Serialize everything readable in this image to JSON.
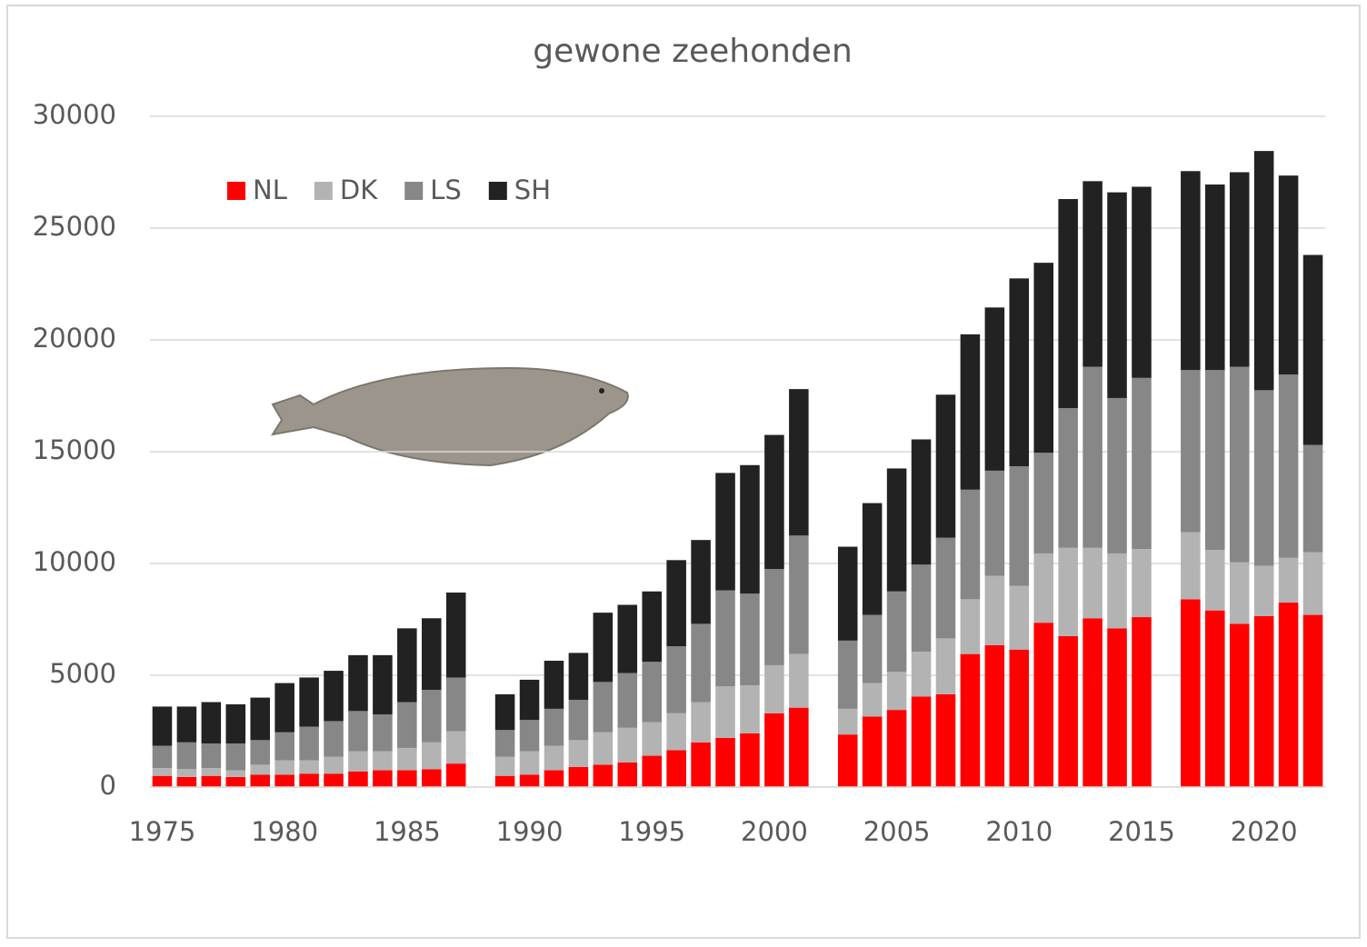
{
  "chart_data": {
    "type": "stacked-bar",
    "title": "gewone zeehonden",
    "x": [
      1975,
      1976,
      1977,
      1978,
      1979,
      1980,
      1981,
      1982,
      1983,
      1984,
      1985,
      1986,
      1987,
      1988,
      1989,
      1990,
      1991,
      1992,
      1993,
      1994,
      1995,
      1996,
      1997,
      1998,
      1999,
      2000,
      2001,
      2002,
      2003,
      2004,
      2005,
      2006,
      2007,
      2008,
      2009,
      2010,
      2011,
      2012,
      2013,
      2014,
      2015,
      2016,
      2017,
      2018,
      2019,
      2020,
      2021,
      2022
    ],
    "series": [
      {
        "name": "NL",
        "color": "#ff0000",
        "values": [
          500,
          450,
          500,
          450,
          550,
          550,
          600,
          600,
          700,
          750,
          750,
          800,
          1050,
          null,
          500,
          550,
          750,
          900,
          1000,
          1100,
          1400,
          1650,
          2000,
          2200,
          2400,
          3300,
          3550,
          null,
          2350,
          3150,
          3450,
          4050,
          4150,
          5950,
          6350,
          6150,
          7350,
          6750,
          7550,
          7100,
          7600,
          null,
          8400,
          7900,
          7300,
          7650,
          8250,
          7700
        ]
      },
      {
        "name": "DK",
        "color": "#b3b3b3",
        "values": [
          350,
          350,
          350,
          300,
          450,
          650,
          600,
          750,
          900,
          850,
          1000,
          1200,
          1450,
          null,
          850,
          1050,
          1100,
          1200,
          1450,
          1550,
          1500,
          1650,
          1800,
          2300,
          2150,
          2150,
          2400,
          null,
          1150,
          1500,
          1700,
          2000,
          2500,
          2450,
          3100,
          2850,
          3100,
          3950,
          3150,
          3350,
          3050,
          null,
          3000,
          2700,
          2750,
          2250,
          2000,
          2800
        ]
      },
      {
        "name": "LS",
        "color": "#878787",
        "values": [
          1000,
          1200,
          1100,
          1200,
          1100,
          1250,
          1500,
          1600,
          1800,
          1650,
          2050,
          2350,
          2400,
          null,
          1200,
          1400,
          1650,
          1800,
          2250,
          2450,
          2700,
          3000,
          3500,
          4300,
          4100,
          4300,
          5300,
          null,
          3050,
          3050,
          3600,
          3900,
          4500,
          4900,
          4700,
          5350,
          4500,
          6250,
          8100,
          6950,
          7650,
          null,
          7250,
          8050,
          8750,
          7850,
          8200,
          4800
        ]
      },
      {
        "name": "SH",
        "color": "#222222",
        "values": [
          1750,
          1600,
          1850,
          1750,
          1900,
          2200,
          2200,
          2250,
          2500,
          2650,
          3300,
          3200,
          3800,
          null,
          1600,
          1800,
          2150,
          2100,
          3100,
          3050,
          3150,
          3850,
          3750,
          5250,
          5750,
          6000,
          6550,
          null,
          4200,
          5000,
          5500,
          5600,
          6400,
          6950,
          7300,
          8400,
          8500,
          9350,
          8300,
          9200,
          8550,
          null,
          8900,
          8300,
          8700,
          10700,
          8900,
          8500
        ]
      }
    ],
    "xlim": [
      1974.5,
      2022.5
    ],
    "xticks": [
      1975,
      1980,
      1985,
      1990,
      1995,
      2000,
      2005,
      2010,
      2015,
      2020
    ],
    "ylim": [
      0,
      30000
    ],
    "yticks": [
      0,
      5000,
      10000,
      15000,
      20000,
      25000,
      30000
    ],
    "grid": true,
    "legend": "top-left"
  }
}
